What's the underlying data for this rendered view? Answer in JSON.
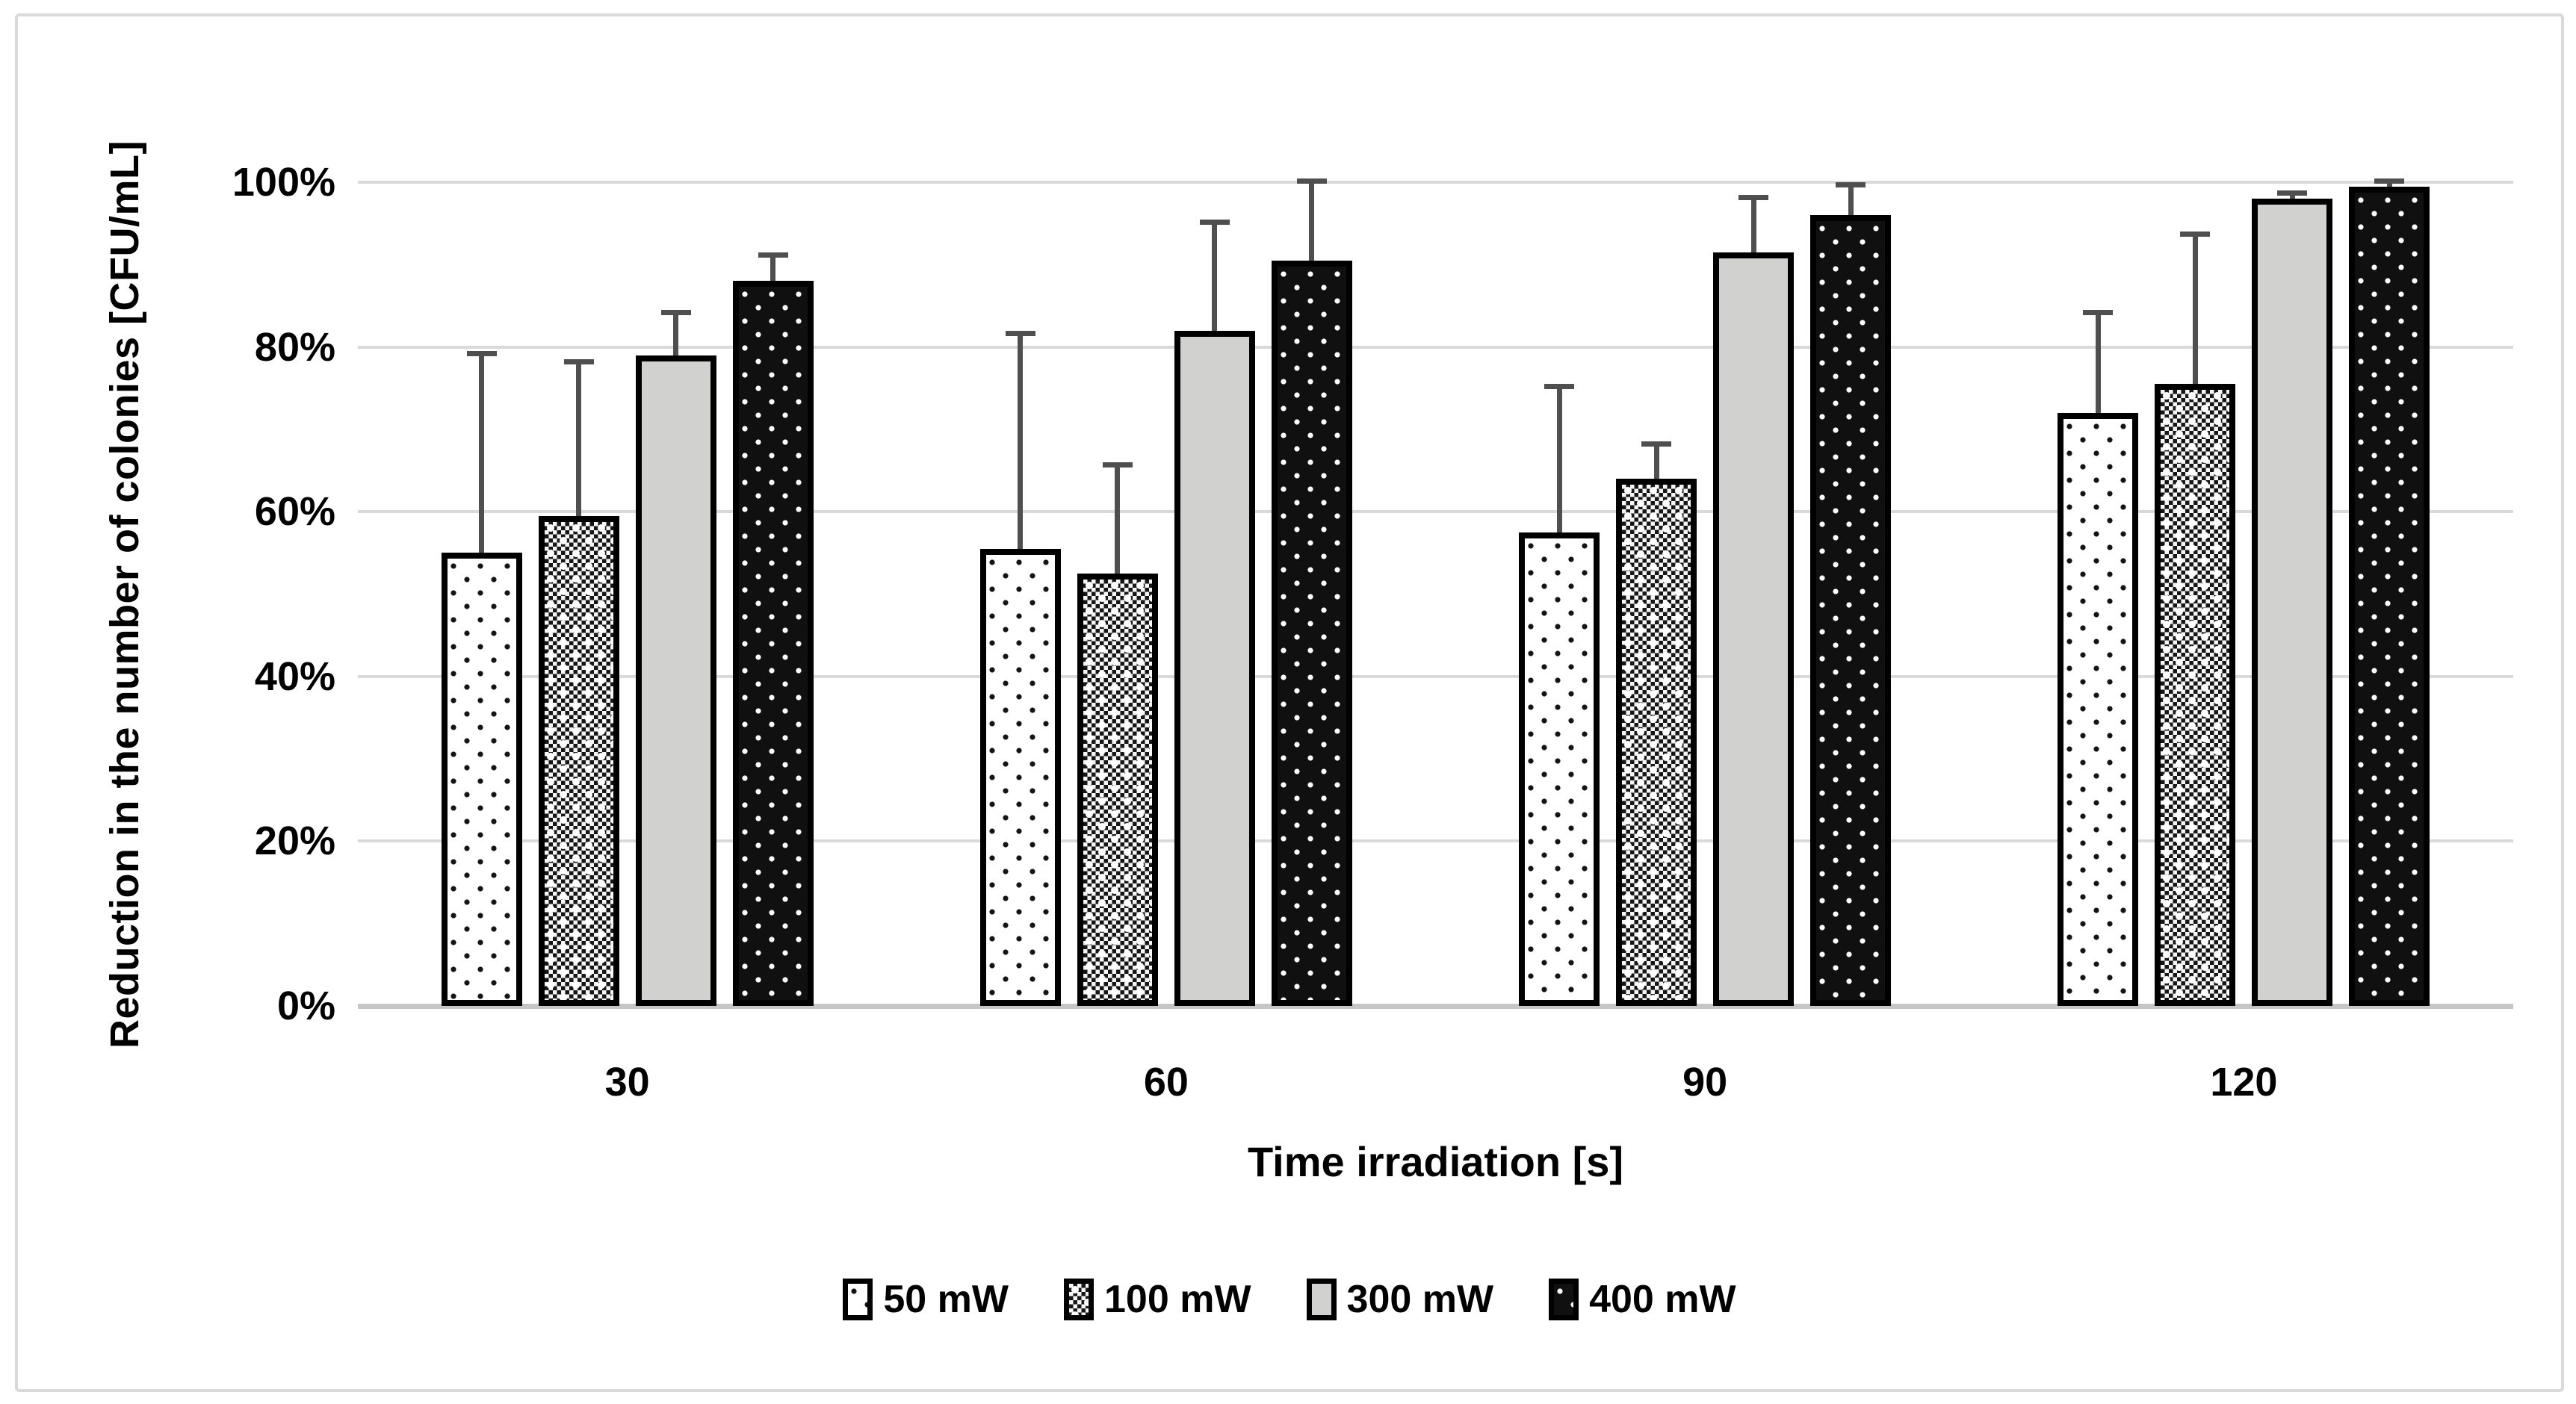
{
  "figure": {
    "background": "#ffffff",
    "frame_border_color": "#d9d9d9"
  },
  "chart_data": {
    "type": "bar",
    "title": "",
    "xlabel": "Time irradiation [s]",
    "ylabel": "Reduction in the number of colonies [CFU/mL]",
    "categories": [
      "30",
      "60",
      "90",
      "120"
    ],
    "y_ticks": [
      "0%",
      "20%",
      "40%",
      "60%",
      "80%",
      "100%"
    ],
    "ylim": [
      0,
      100
    ],
    "grid": "horizontal",
    "legend_position": "bottom",
    "error_bars": "upper",
    "series": [
      {
        "name": "50 mW",
        "pattern": "dots-on-white",
        "values": [
          55,
          55.5,
          57.5,
          72
        ],
        "error_plus": [
          24.5,
          26.5,
          18,
          12.5
        ]
      },
      {
        "name": "100 mW",
        "pattern": "checker",
        "values": [
          59.5,
          52.5,
          64,
          75.5
        ],
        "error_plus": [
          19,
          13.5,
          4.5,
          18.5
        ]
      },
      {
        "name": "300 mW",
        "pattern": "solid-gray",
        "fill": "#d1d1cf",
        "values": [
          79,
          82,
          91.5,
          98
        ],
        "error_plus": [
          5.5,
          13.5,
          7,
          1
        ]
      },
      {
        "name": "400 mW",
        "pattern": "dots-on-black",
        "values": [
          88,
          90.5,
          96,
          99.5
        ],
        "error_plus": [
          3.5,
          10,
          4,
          1
        ]
      }
    ],
    "colors": {
      "error_bar": "#4f4f4f",
      "gridline": "#d9d9d9",
      "axis_line": "#c6c6c6",
      "bar_border": "#000000",
      "text": "#000000"
    }
  }
}
